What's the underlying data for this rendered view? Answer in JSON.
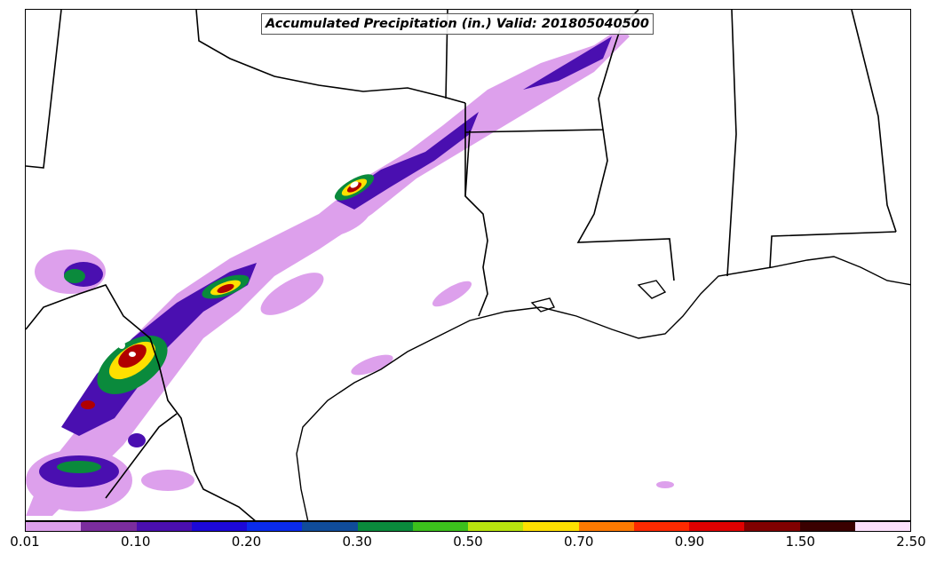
{
  "title": "Accumulated Precipitation (in.) Valid: 201805040500",
  "colorbar": {
    "colors": [
      "#dda0ec",
      "#7b2d9e",
      "#4a0fb0",
      "#1c08d8",
      "#0a2bec",
      "#104c9a",
      "#0a8a3c",
      "#3cc01c",
      "#b8e40e",
      "#ffe000",
      "#ff7a00",
      "#ff2a00",
      "#e00000",
      "#800000",
      "#3a0000",
      "#fce0fc"
    ],
    "tick_labels": [
      "0.01",
      "0.10",
      "0.20",
      "0.30",
      "0.50",
      "0.70",
      "0.90",
      "1.50",
      "2.50"
    ],
    "tick_segment_index": [
      0,
      2,
      4,
      6,
      8,
      10,
      12,
      14,
      16
    ]
  },
  "map": {
    "type": "precipitation-accumulation",
    "units": "in.",
    "region": "Southern Plains / Gulf Coast",
    "boundaries": "state borders and coastline in black"
  }
}
